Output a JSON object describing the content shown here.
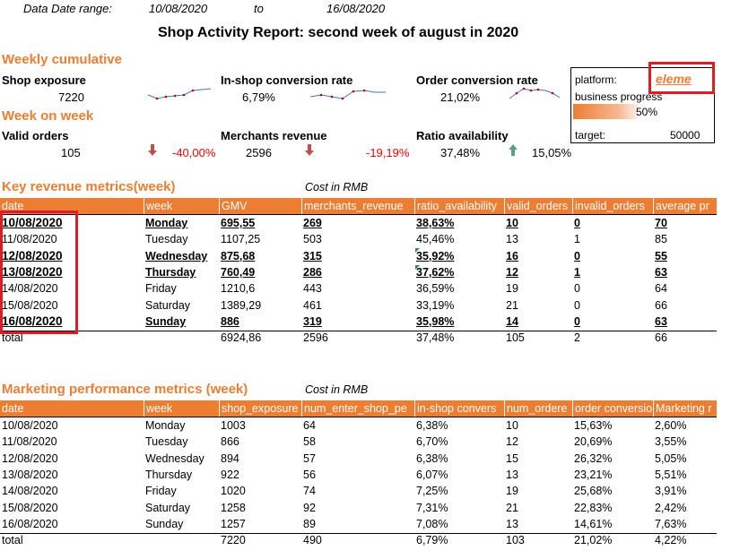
{
  "meta": {
    "date_range_label": "Data Date range:",
    "date_from": "10/08/2020",
    "to_label": "to",
    "date_to": "16/08/2020"
  },
  "report_title": "Shop Activity Report: second week of august in 2020",
  "weekly": {
    "heading": "Weekly cumulative",
    "shop_exposure": {
      "label": "Shop exposure",
      "value": "7220"
    },
    "conversion": {
      "label": "In-shop conversion rate",
      "value": "6,79%"
    },
    "order_conversion": {
      "label": "Order conversion rate",
      "value": "21,02%"
    }
  },
  "wow": {
    "heading": "Week on week",
    "valid_orders": {
      "label": "Valid orders",
      "value": "105",
      "change": "-40,00%"
    },
    "merchants_revenue": {
      "label": "Merchants revenue",
      "value": "2596",
      "change": "-19,19%"
    },
    "ratio_availability": {
      "label": "Ratio availability",
      "value": "37,48%",
      "change": "15,05%"
    }
  },
  "colors": {
    "accent": "#ED7D31",
    "down": "#C0504D",
    "up": "#5BA17D",
    "highlight": "#e01b24"
  },
  "platform": {
    "label": "platform:",
    "value": "eleme",
    "progress_label": "business progress",
    "progress_value": "50%",
    "progress_fraction": 0.5,
    "target_label": "target:",
    "target_value": "50000"
  },
  "revenue": {
    "heading": "Key revenue metrics(week)",
    "note": "Cost in RMB",
    "columns": [
      "date",
      "week",
      "GMV",
      "merchants_revenue",
      "ratio_availability",
      "valid_orders",
      "invalid_orders",
      "average pr"
    ],
    "rows": [
      [
        "10/08/2020",
        "Monday",
        "695,55",
        "269",
        "38,63%",
        "10",
        "0",
        "70"
      ],
      [
        "11/08/2020",
        "Tuesday",
        "1107,25",
        "503",
        "45,46%",
        "13",
        "1",
        "85"
      ],
      [
        "12/08/2020",
        "Wednesday",
        "875,68",
        "315",
        "35,92%",
        "16",
        "0",
        "55"
      ],
      [
        "13/08/2020",
        "Thursday",
        "760,49",
        "286",
        "37,62%",
        "12",
        "1",
        "63"
      ],
      [
        "14/08/2020",
        "Friday",
        "1210,6",
        "443",
        "36,59%",
        "19",
        "0",
        "64"
      ],
      [
        "15/08/2020",
        "Saturday",
        "1389,29",
        "461",
        "33,19%",
        "21",
        "0",
        "66"
      ],
      [
        "16/08/2020",
        "Sunday",
        "886",
        "319",
        "35,98%",
        "14",
        "0",
        "63"
      ]
    ],
    "total": [
      "total",
      "",
      "6924,86",
      "2596",
      "37,48%",
      "105",
      "2",
      "66"
    ]
  },
  "marketing": {
    "heading": "Marketing performance metrics (week)",
    "note": "Cost in RMB",
    "columns": [
      "date",
      "week",
      "shop_exposure",
      "num_enter_shop_pe",
      "in-shop convers",
      "num_ordere",
      "order conversio",
      "Marketing r"
    ],
    "rows": [
      [
        "10/08/2020",
        "Monday",
        "1003",
        "64",
        "6,38%",
        "10",
        "15,63%",
        "2,60%"
      ],
      [
        "11/08/2020",
        "Tuesday",
        "866",
        "58",
        "6,70%",
        "12",
        "20,69%",
        "3,55%"
      ],
      [
        "12/08/2020",
        "Wednesday",
        "894",
        "57",
        "6,38%",
        "15",
        "26,32%",
        "5,05%"
      ],
      [
        "13/08/2020",
        "Thursday",
        "922",
        "56",
        "6,07%",
        "13",
        "23,21%",
        "5,51%"
      ],
      [
        "14/08/2020",
        "Friday",
        "1020",
        "74",
        "7,25%",
        "19",
        "25,68%",
        "3,91%"
      ],
      [
        "15/08/2020",
        "Saturday",
        "1258",
        "92",
        "7,31%",
        "21",
        "22,83%",
        "2,42%"
      ],
      [
        "16/08/2020",
        "Sunday",
        "1257",
        "89",
        "7,08%",
        "13",
        "14,61%",
        "7,63%"
      ]
    ],
    "total": [
      "total",
      "",
      "7220",
      "490",
      "6,79%",
      "103",
      "21,02%",
      "4,22%"
    ]
  }
}
